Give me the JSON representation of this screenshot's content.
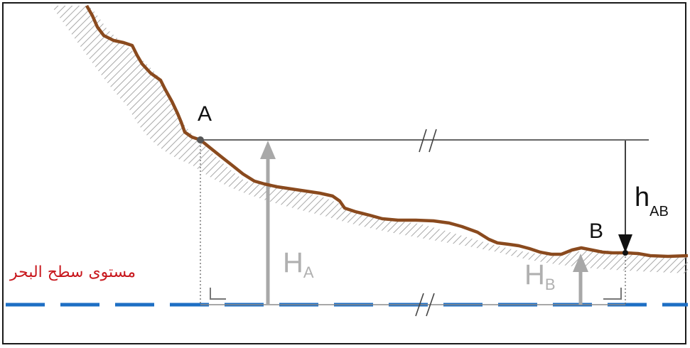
{
  "diagram": {
    "point_a": "A",
    "point_b": "B",
    "height_a": {
      "letter": "H",
      "sub": "A"
    },
    "height_b": {
      "letter": "H",
      "sub": "B"
    },
    "height_diff": {
      "letter": "h",
      "sub": "AB"
    },
    "sea_level_label": "مستوى سطح البحر",
    "colors": {
      "terrain": "#8a4a1e",
      "sea_level": "#1e6fc4",
      "height_arrow": "#a8a8a8",
      "sea_label": "#c8181e"
    }
  }
}
